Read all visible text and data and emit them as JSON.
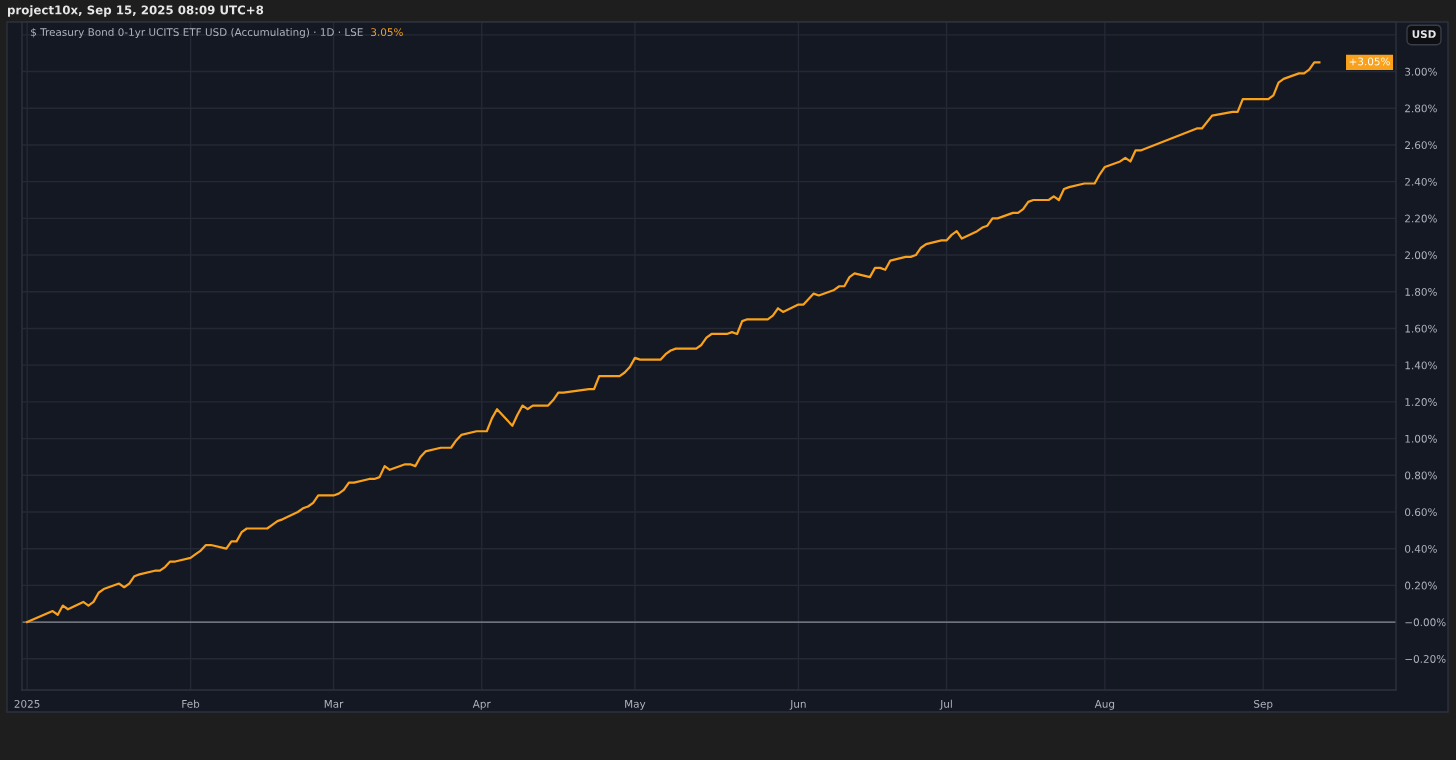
{
  "chart_data": {
    "type": "line",
    "title": "$ Treasury Bond 0-1yr UCITS ETF USD (Accumulating) · 1D · LSE",
    "subtitle": "3.05%",
    "ylabel": "USD",
    "x": [
      "2025-01-02",
      "2025-01-07",
      "2025-01-08",
      "2025-01-09",
      "2025-01-10",
      "2025-01-13",
      "2025-01-14",
      "2025-01-15",
      "2025-01-16",
      "2025-01-17",
      "2025-01-20",
      "2025-01-21",
      "2025-01-22",
      "2025-01-23",
      "2025-01-24",
      "2025-01-27",
      "2025-01-28",
      "2025-01-29",
      "2025-01-30",
      "2025-01-31",
      "2025-02-03",
      "2025-02-04",
      "2025-02-05",
      "2025-02-06",
      "2025-02-07",
      "2025-02-10",
      "2025-02-11",
      "2025-02-12",
      "2025-02-13",
      "2025-02-14",
      "2025-02-18",
      "2025-02-19",
      "2025-02-20",
      "2025-02-21",
      "2025-02-24",
      "2025-02-25",
      "2025-02-26",
      "2025-02-27",
      "2025-02-28",
      "2025-03-03",
      "2025-03-04",
      "2025-03-05",
      "2025-03-06",
      "2025-03-07",
      "2025-03-10",
      "2025-03-11",
      "2025-03-12",
      "2025-03-13",
      "2025-03-14",
      "2025-03-17",
      "2025-03-18",
      "2025-03-19",
      "2025-03-20",
      "2025-03-21",
      "2025-03-24",
      "2025-03-26",
      "2025-03-27",
      "2025-03-28",
      "2025-03-31",
      "2025-04-02",
      "2025-04-03",
      "2025-04-04",
      "2025-04-07",
      "2025-04-08",
      "2025-04-09",
      "2025-04-10",
      "2025-04-11",
      "2025-04-14",
      "2025-04-15",
      "2025-04-16",
      "2025-04-17",
      "2025-04-22",
      "2025-04-23",
      "2025-04-24",
      "2025-04-28",
      "2025-04-29",
      "2025-04-30",
      "2025-05-01",
      "2025-05-02",
      "2025-05-06",
      "2025-05-07",
      "2025-05-08",
      "2025-05-09",
      "2025-05-13",
      "2025-05-14",
      "2025-05-15",
      "2025-05-16",
      "2025-05-19",
      "2025-05-20",
      "2025-05-21",
      "2025-05-22",
      "2025-05-23",
      "2025-05-27",
      "2025-05-28",
      "2025-05-29",
      "2025-05-30",
      "2025-06-02",
      "2025-06-03",
      "2025-06-04",
      "2025-06-05",
      "2025-06-06",
      "2025-06-09",
      "2025-06-10",
      "2025-06-11",
      "2025-06-12",
      "2025-06-13",
      "2025-06-16",
      "2025-06-17",
      "2025-06-18",
      "2025-06-19",
      "2025-06-20",
      "2025-06-23",
      "2025-06-24",
      "2025-06-25",
      "2025-06-26",
      "2025-06-27",
      "2025-06-30",
      "2025-07-01",
      "2025-07-02",
      "2025-07-03",
      "2025-07-04",
      "2025-07-07",
      "2025-07-08",
      "2025-07-09",
      "2025-07-10",
      "2025-07-11",
      "2025-07-14",
      "2025-07-15",
      "2025-07-16",
      "2025-07-17",
      "2025-07-18",
      "2025-07-21",
      "2025-07-22",
      "2025-07-23",
      "2025-07-24",
      "2025-07-25",
      "2025-07-28",
      "2025-07-30",
      "2025-07-31",
      "2025-08-01",
      "2025-08-04",
      "2025-08-05",
      "2025-08-06",
      "2025-08-07",
      "2025-08-08",
      "2025-08-19",
      "2025-08-20",
      "2025-08-22",
      "2025-08-26",
      "2025-08-27",
      "2025-08-28",
      "2025-09-02",
      "2025-09-03",
      "2025-09-04",
      "2025-09-05",
      "2025-09-08",
      "2025-09-09",
      "2025-09-10",
      "2025-09-11",
      "2025-09-12"
    ],
    "series": [
      {
        "color": "#f9a11b",
        "values": [
          0.0,
          0.06,
          0.04,
          0.09,
          0.07,
          0.11,
          0.09,
          0.11,
          0.16,
          0.18,
          0.21,
          0.19,
          0.21,
          0.25,
          0.26,
          0.28,
          0.28,
          0.3,
          0.33,
          0.33,
          0.35,
          0.37,
          0.39,
          0.42,
          0.42,
          0.4,
          0.44,
          0.44,
          0.49,
          0.51,
          0.51,
          0.53,
          0.55,
          0.56,
          0.6,
          0.62,
          0.63,
          0.65,
          0.69,
          0.69,
          0.7,
          0.72,
          0.76,
          0.76,
          0.78,
          0.78,
          0.79,
          0.85,
          0.83,
          0.86,
          0.86,
          0.85,
          0.9,
          0.93,
          0.95,
          0.95,
          0.99,
          1.02,
          1.04,
          1.04,
          1.11,
          1.16,
          1.07,
          1.13,
          1.18,
          1.16,
          1.18,
          1.18,
          1.21,
          1.25,
          1.25,
          1.27,
          1.27,
          1.34,
          1.34,
          1.36,
          1.39,
          1.44,
          1.43,
          1.43,
          1.46,
          1.48,
          1.49,
          1.49,
          1.51,
          1.55,
          1.57,
          1.57,
          1.58,
          1.57,
          1.64,
          1.65,
          1.65,
          1.67,
          1.71,
          1.69,
          1.73,
          1.73,
          1.76,
          1.79,
          1.78,
          1.81,
          1.83,
          1.83,
          1.88,
          1.9,
          1.88,
          1.93,
          1.93,
          1.92,
          1.97,
          1.99,
          1.99,
          2.0,
          2.04,
          2.06,
          2.08,
          2.08,
          2.11,
          2.13,
          2.09,
          2.13,
          2.15,
          2.16,
          2.2,
          2.2,
          2.23,
          2.23,
          2.25,
          2.29,
          2.3,
          2.3,
          2.32,
          2.3,
          2.36,
          2.37,
          2.39,
          2.39,
          2.44,
          2.48,
          2.51,
          2.53,
          2.51,
          2.57,
          2.57,
          2.69,
          2.69,
          2.76,
          2.78,
          2.78,
          2.85,
          2.85,
          2.87,
          2.94,
          2.96,
          2.99,
          2.99,
          3.01,
          3.05,
          3.05
        ]
      }
    ],
    "xlim": [
      "2025-01-01",
      "2025-09-27"
    ],
    "xticks": [
      {
        "value": "2025-01-02",
        "label": "2025"
      },
      {
        "value": "2025-02-03",
        "label": "Feb"
      },
      {
        "value": "2025-03-03",
        "label": "Mar"
      },
      {
        "value": "2025-04-01",
        "label": "Apr"
      },
      {
        "value": "2025-05-01",
        "label": "May"
      },
      {
        "value": "2025-06-02",
        "label": "Jun"
      },
      {
        "value": "2025-07-01",
        "label": "Jul"
      },
      {
        "value": "2025-08-01",
        "label": "Aug"
      },
      {
        "value": "2025-09-01",
        "label": "Sep"
      }
    ],
    "ylim": [
      -0.37,
      3.27
    ],
    "yticks": [
      {
        "value": -0.2,
        "label": "−0.20%"
      },
      {
        "value": 0,
        "label": "−0.00%"
      },
      {
        "value": 0.2,
        "label": "0.20%"
      },
      {
        "value": 0.4,
        "label": "0.40%"
      },
      {
        "value": 0.6,
        "label": "0.60%"
      },
      {
        "value": 0.8,
        "label": "0.80%"
      },
      {
        "value": 1.0,
        "label": "1.00%"
      },
      {
        "value": 1.2,
        "label": "1.20%"
      },
      {
        "value": 1.4,
        "label": "1.40%"
      },
      {
        "value": 1.6,
        "label": "1.60%"
      },
      {
        "value": 1.8,
        "label": "1.80%"
      },
      {
        "value": 2.0,
        "label": "2.00%"
      },
      {
        "value": 2.2,
        "label": "2.20%"
      },
      {
        "value": 2.4,
        "label": "2.40%"
      },
      {
        "value": 2.6,
        "label": "2.60%"
      },
      {
        "value": 2.8,
        "label": "2.80%"
      },
      {
        "value": 3.0,
        "label": "3.00%"
      },
      {
        "value": 3.2,
        "label": null
      }
    ],
    "grid": true,
    "line_style": "solid",
    "ref_lines": [
      {
        "axis": "y",
        "value": 0,
        "color": "#8a8d96"
      }
    ],
    "annotations": [
      "project10x, Sep 15, 2025 08:09 UTC+8",
      "+3.05%"
    ]
  }
}
